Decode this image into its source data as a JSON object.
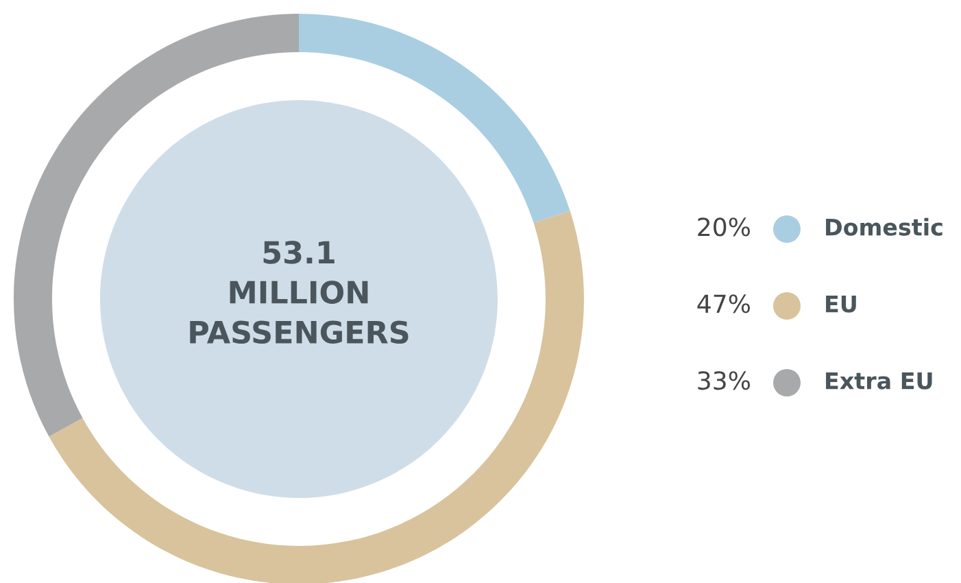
{
  "chart_data": {
    "type": "donut",
    "categories": [
      "Domestic",
      "EU",
      "Extra EU"
    ],
    "values": [
      20,
      47,
      33
    ],
    "colors": [
      "#a9cee1",
      "#d9c39c",
      "#a8a9ab"
    ],
    "value_labels": [
      "20%",
      "47%",
      "33%"
    ],
    "legend": "right",
    "annotations": [
      "53.1\nMILLION\nPASSENGERS"
    ]
  }
}
